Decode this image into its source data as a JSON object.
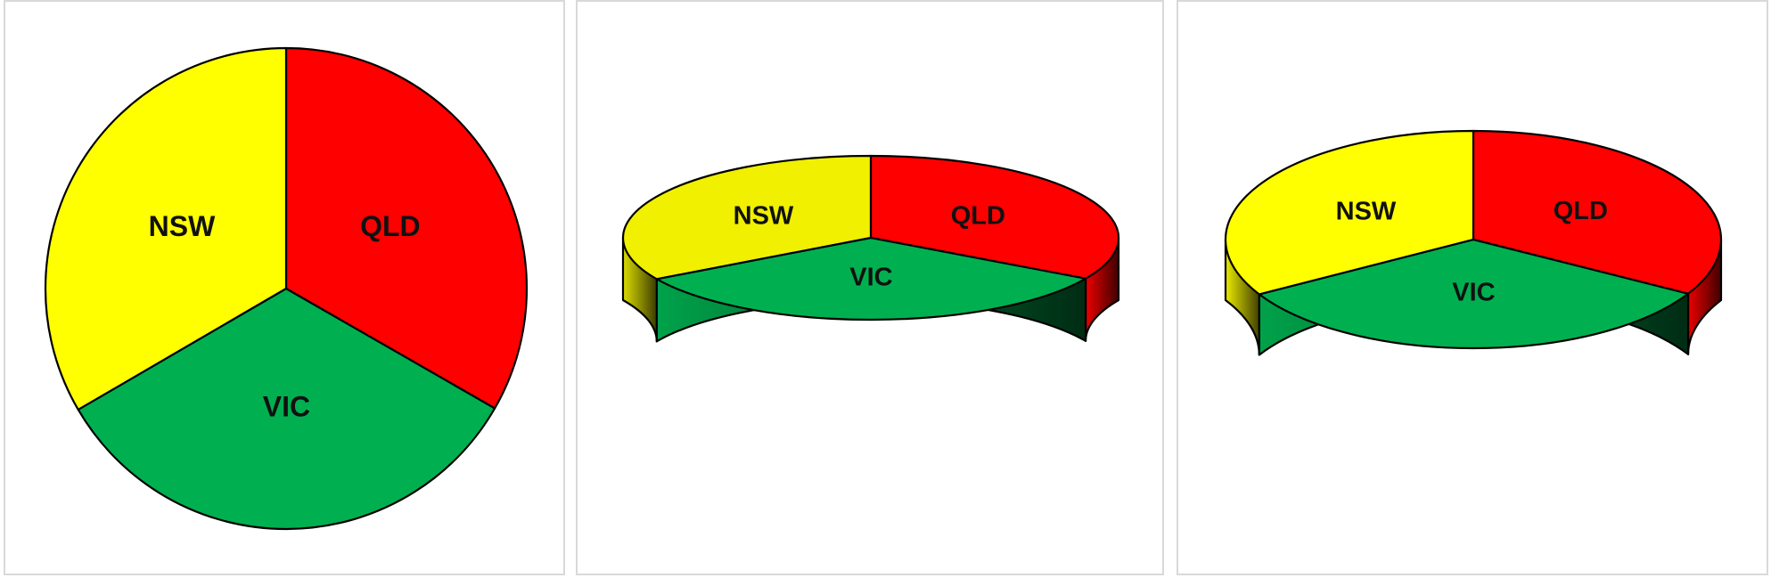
{
  "chart_data": [
    {
      "type": "pie",
      "style": "flat",
      "title": "",
      "categories": [
        "QLD",
        "VIC",
        "NSW"
      ],
      "values": [
        33.3,
        33.3,
        33.4
      ],
      "colors": [
        "#ff0000",
        "#00b050",
        "#ffff00"
      ],
      "legend": "none"
    },
    {
      "type": "pie",
      "style": "3d",
      "title": "",
      "categories": [
        "QLD",
        "VIC",
        "NSW"
      ],
      "values": [
        33.3,
        33.3,
        33.4
      ],
      "colors": [
        "#ff0000",
        "#00b050",
        "#f0f000"
      ],
      "legend": "none"
    },
    {
      "type": "pie",
      "style": "3d",
      "title": "",
      "categories": [
        "QLD",
        "VIC",
        "NSW"
      ],
      "values": [
        33.3,
        33.3,
        33.4
      ],
      "colors": [
        "#ff0000",
        "#00b050",
        "#ffff00"
      ],
      "legend": "none"
    }
  ]
}
